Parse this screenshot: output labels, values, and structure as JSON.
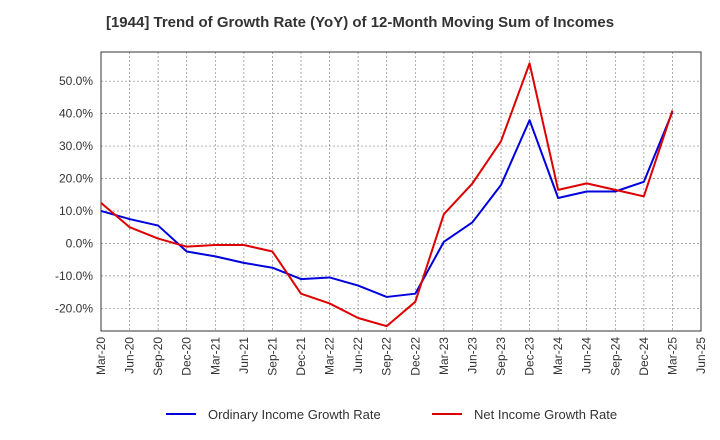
{
  "chart_data": {
    "type": "line",
    "title": "[1944]  Trend of Growth Rate (YoY) of 12-Month Moving Sum of Incomes",
    "xlabel": "",
    "ylabel": "",
    "categories": [
      "Mar-20",
      "Jun-20",
      "Sep-20",
      "Dec-20",
      "Mar-21",
      "Jun-21",
      "Sep-21",
      "Dec-21",
      "Mar-22",
      "Jun-22",
      "Sep-22",
      "Dec-22",
      "Mar-23",
      "Jun-23",
      "Sep-23",
      "Dec-23",
      "Mar-24",
      "Jun-24",
      "Sep-24",
      "Dec-24",
      "Mar-25",
      "Jun-25"
    ],
    "ylim": [
      -27,
      59
    ],
    "yticks": [
      -20,
      -10,
      0,
      10,
      20,
      30,
      40,
      50
    ],
    "ytick_labels": [
      "-20.0%",
      "-10.0%",
      "0.0%",
      "10.0%",
      "20.0%",
      "30.0%",
      "40.0%",
      "50.0%"
    ],
    "grid": true,
    "legend_position": "bottom",
    "series": [
      {
        "name": "Ordinary Income Growth Rate",
        "color": "#0000dd",
        "values": [
          10.0,
          7.5,
          5.5,
          -2.5,
          -4.0,
          -6.0,
          -7.5,
          -11.0,
          -10.5,
          -13.0,
          -16.5,
          -15.5,
          0.5,
          6.5,
          18.0,
          38.0,
          14.0,
          16.0,
          16.0,
          19.0,
          40.5,
          null
        ]
      },
      {
        "name": "Net Income Growth Rate",
        "color": "#dd0000",
        "values": [
          12.5,
          5.0,
          1.5,
          -1.0,
          -0.5,
          -0.5,
          -2.5,
          -15.5,
          -18.5,
          -23.0,
          -25.5,
          -18.0,
          9.0,
          18.5,
          31.5,
          55.5,
          16.5,
          18.5,
          16.5,
          14.5,
          41.0,
          null
        ]
      }
    ]
  }
}
